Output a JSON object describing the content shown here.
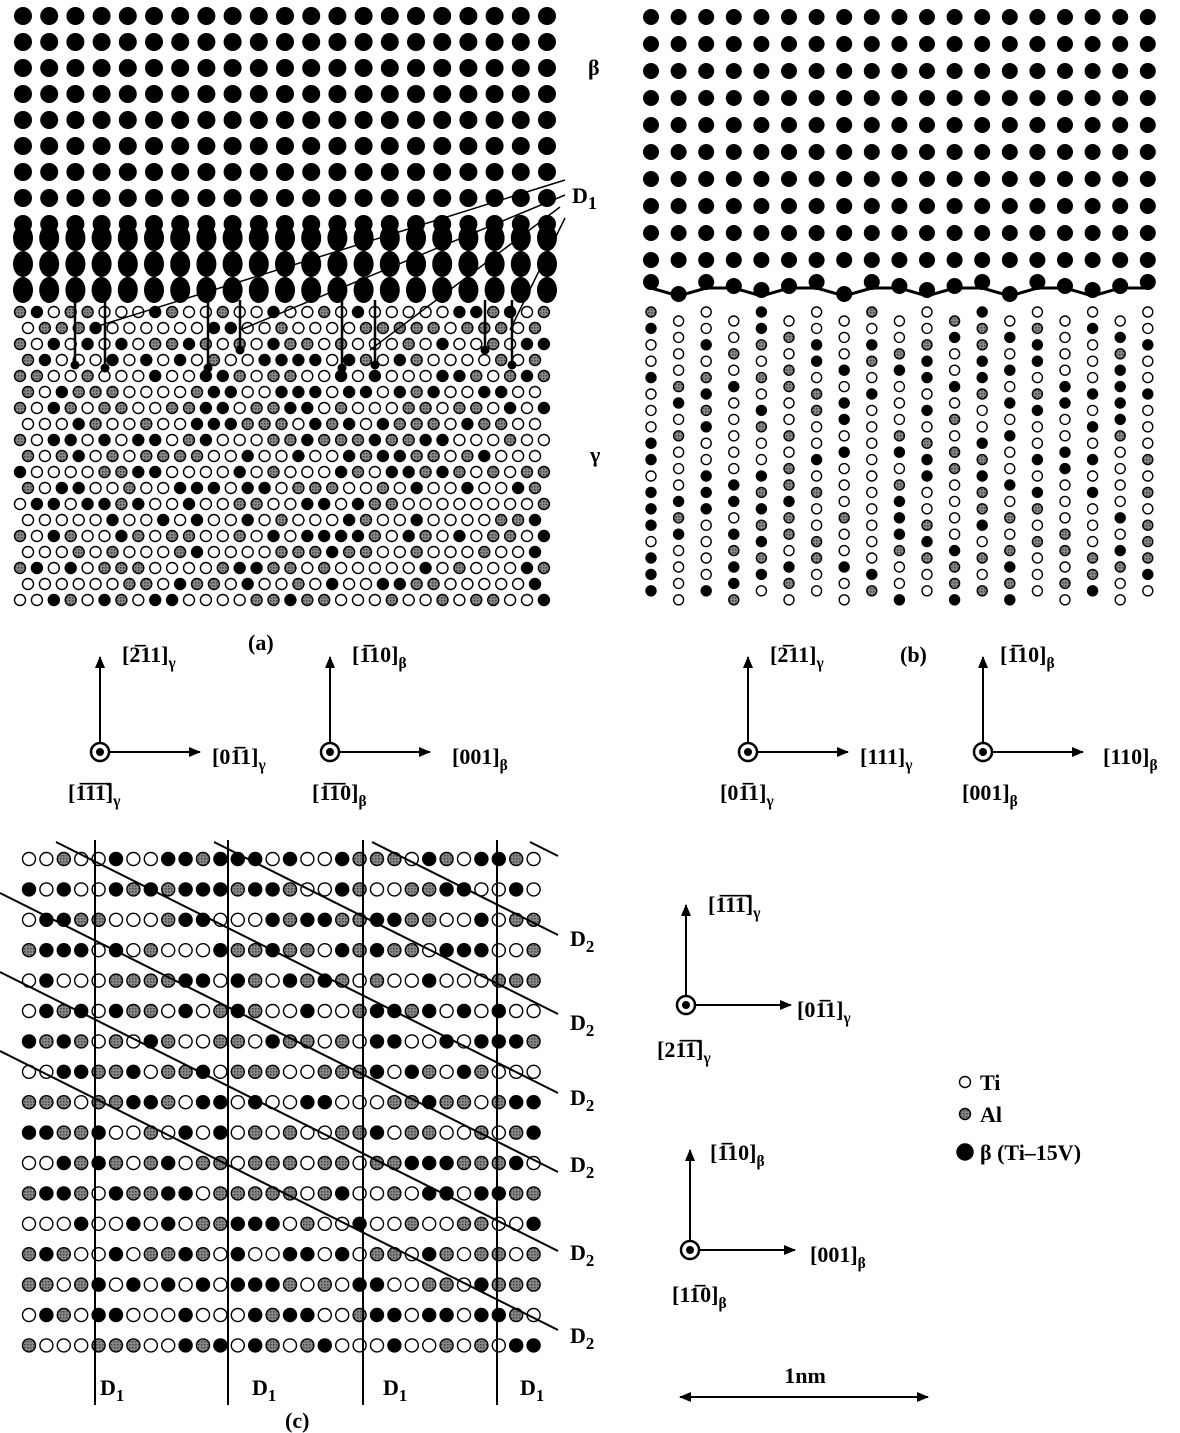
{
  "panel_a": {
    "label": "(a)",
    "phase_top": "β",
    "phase_bottom": "γ",
    "interface": {
      "text": "D",
      "sub": "1"
    },
    "axes": [
      {
        "up": {
          "text": "[2̅11]",
          "sub": "γ"
        },
        "right": {
          "text": "[01̅1]",
          "sub": "γ"
        },
        "normal": {
          "text": "[1̅1̅1̅]",
          "sub": "γ"
        }
      },
      {
        "up": {
          "text": "[1̅10]",
          "sub": "β"
        },
        "right": {
          "text": "[001]",
          "sub": "β"
        },
        "normal": {
          "text": "[1̅1̅0]",
          "sub": "β"
        }
      }
    ]
  },
  "panel_b": {
    "label": "(b)",
    "axes": [
      {
        "up": {
          "text": "[2̅11]",
          "sub": "γ"
        },
        "right": {
          "text": "[111]",
          "sub": "γ"
        },
        "normal": {
          "text": "[01̅1]",
          "sub": "γ"
        }
      },
      {
        "up": {
          "text": "[1̅10]",
          "sub": "β"
        },
        "right": {
          "text": "[110]",
          "sub": "β"
        },
        "normal": {
          "text": "[001]",
          "sub": "β"
        }
      }
    ]
  },
  "panel_c": {
    "label": "(c)",
    "d1_labels": [
      {
        "text": "D",
        "sub": "1"
      },
      {
        "text": "D",
        "sub": "1"
      },
      {
        "text": "D",
        "sub": "1"
      },
      {
        "text": "D",
        "sub": "1"
      }
    ],
    "d2_labels": [
      {
        "text": "D",
        "sub": "2"
      },
      {
        "text": "D",
        "sub": "2"
      },
      {
        "text": "D",
        "sub": "2"
      },
      {
        "text": "D",
        "sub": "2"
      },
      {
        "text": "D",
        "sub": "2"
      },
      {
        "text": "D",
        "sub": "2"
      }
    ],
    "axes": [
      {
        "up": {
          "text": "[1̅1̅1̅]",
          "sub": "γ"
        },
        "right": {
          "text": "[01̅1]",
          "sub": "γ"
        },
        "normal": {
          "text": "[21̅1̅]",
          "sub": "γ"
        }
      },
      {
        "up": {
          "text": "[1̅10]",
          "sub": "β"
        },
        "right": {
          "text": "[001]",
          "sub": "β"
        },
        "normal": {
          "text": "[11̅0]",
          "sub": "β"
        }
      }
    ]
  },
  "legend": [
    "Ti",
    "Al",
    "β (Ti–15V)"
  ],
  "scale_bar": "1nm"
}
